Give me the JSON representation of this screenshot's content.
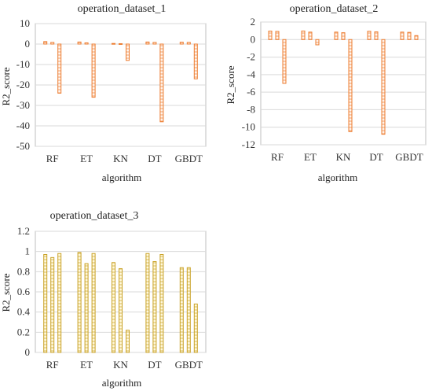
{
  "chart_data": [
    {
      "type": "bar",
      "title": "operation_dataset_1",
      "xlabel": "algorithm",
      "ylabel": "R2_score",
      "categories": [
        "RF",
        "ET",
        "KN",
        "DT",
        "GBDT"
      ],
      "series": [
        {
          "values": [
            1.2,
            1.0,
            0.3,
            1.0,
            0.9
          ]
        },
        {
          "values": [
            0.8,
            0.6,
            0.2,
            0.8,
            0.8
          ]
        },
        {
          "values": [
            -24,
            -26,
            -8,
            -38,
            -17
          ]
        }
      ],
      "ylim": [
        -50,
        10
      ],
      "yticks": [
        10,
        0,
        -10,
        -20,
        -30,
        -40,
        -50
      ],
      "grid": true,
      "bar_color": "#ed7d31",
      "bar_fill": "#fff4ec"
    },
    {
      "type": "bar",
      "title": "operation_dataset_2",
      "xlabel": "algorithm",
      "ylabel": "R2_score",
      "categories": [
        "RF",
        "ET",
        "KN",
        "DT",
        "GBDT"
      ],
      "series": [
        {
          "values": [
            0.97,
            0.98,
            0.85,
            0.95,
            0.85
          ]
        },
        {
          "values": [
            0.93,
            0.85,
            0.78,
            0.88,
            0.82
          ]
        },
        {
          "values": [
            -5.0,
            -0.6,
            -10.5,
            -10.8,
            0.45
          ]
        }
      ],
      "ylim": [
        -12,
        2
      ],
      "yticks": [
        2,
        0,
        -2,
        -4,
        -6,
        -8,
        -10,
        -12
      ],
      "grid": true,
      "bar_color": "#ed7d31",
      "bar_fill": "#fff4ec"
    },
    {
      "type": "bar",
      "title": "operation_dataset_3",
      "xlabel": "algorithm",
      "ylabel": "R2_score",
      "categories": [
        "RF",
        "ET",
        "KN",
        "DT",
        "GBDT"
      ],
      "series": [
        {
          "values": [
            0.97,
            0.99,
            0.89,
            0.98,
            0.84
          ]
        },
        {
          "values": [
            0.94,
            0.88,
            0.83,
            0.9,
            0.84
          ]
        },
        {
          "values": [
            0.98,
            0.98,
            0.22,
            0.97,
            0.48
          ]
        }
      ],
      "ylim": [
        0,
        1.2
      ],
      "yticks": [
        1.2,
        1,
        0.8,
        0.6,
        0.4,
        0.2,
        0
      ],
      "grid": true,
      "bar_color": "#c9a227",
      "bar_fill": "#fff8dc"
    }
  ]
}
